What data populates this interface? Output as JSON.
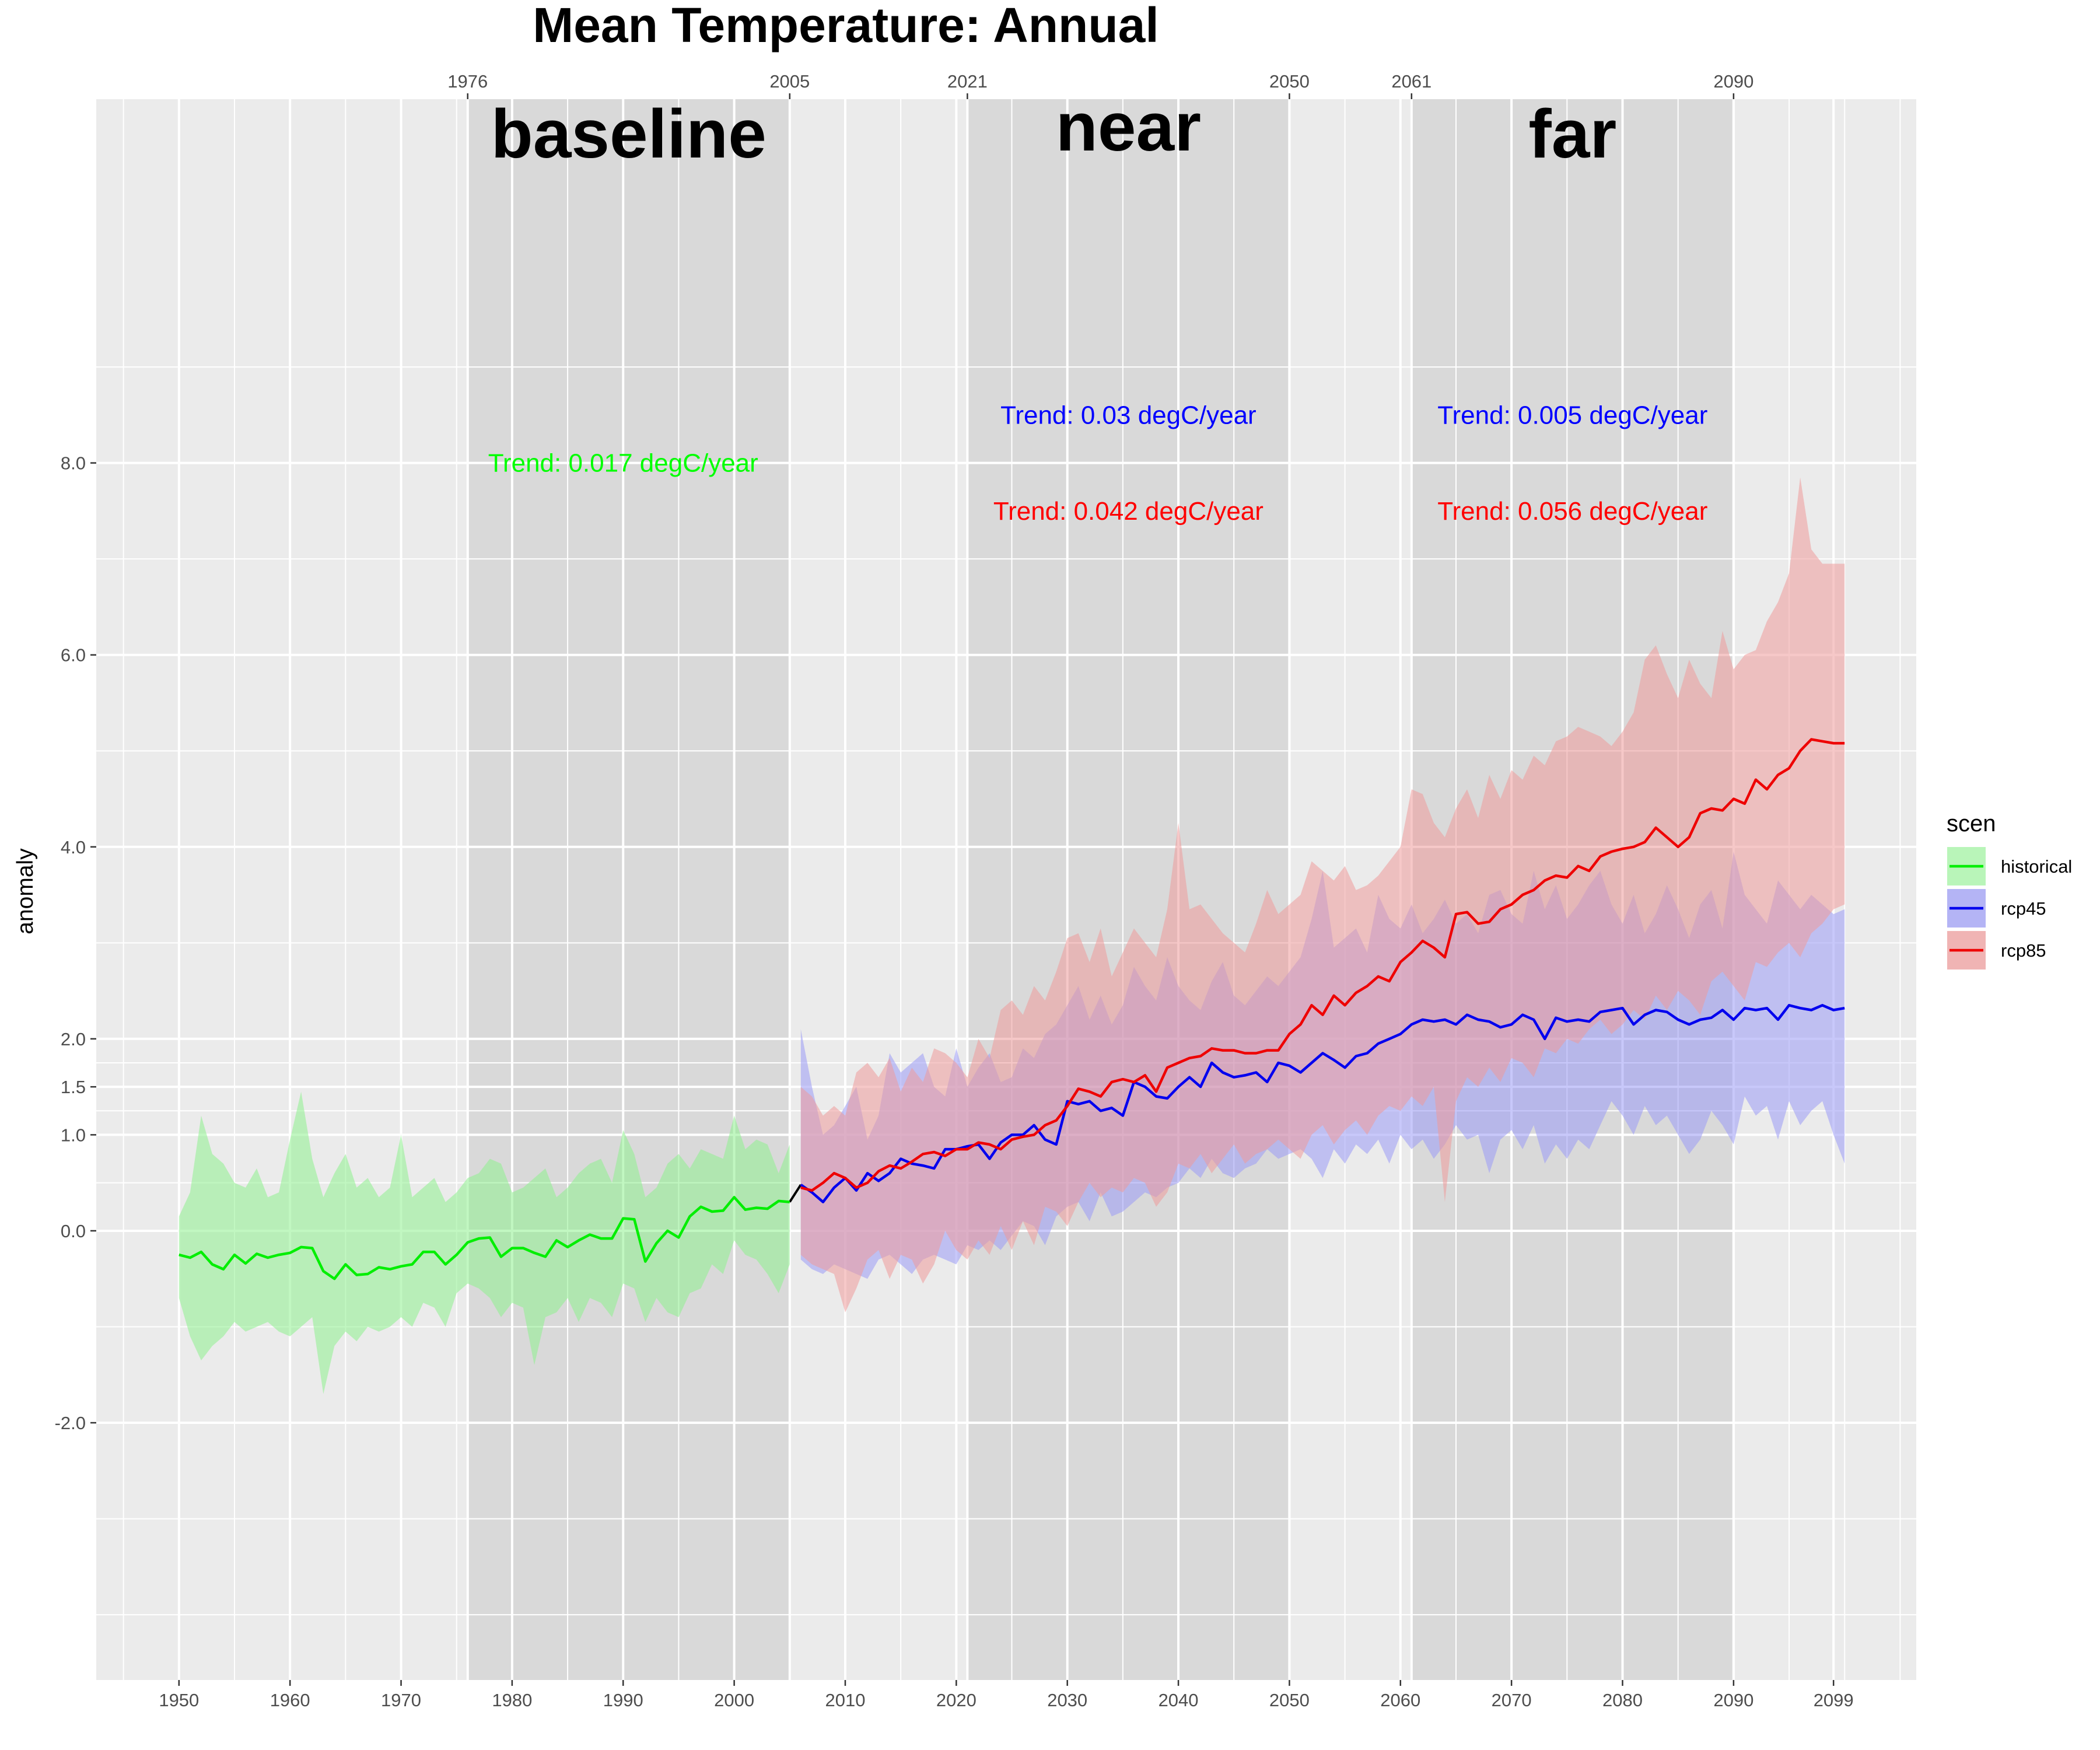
{
  "chart_data": {
    "type": "line",
    "title": "Mean Temperature: Annual",
    "xlabel": "",
    "ylabel": "anomaly",
    "xlim": [
      1942.55,
      2106.45
    ],
    "ylim": [
      -4.68,
      11.79
    ],
    "x_ticks_bottom": [
      1950,
      1960,
      1970,
      1980,
      1990,
      2000,
      2010,
      2020,
      2030,
      2040,
      2050,
      2060,
      2070,
      2080,
      2090,
      2099
    ],
    "y_ticks": [
      {
        "value": -2.0,
        "label": "-2.0"
      },
      {
        "value": 0.0,
        "label": "0.0"
      },
      {
        "value": 1.0,
        "label": "1.0"
      },
      {
        "value": 1.5,
        "label": "1.5"
      },
      {
        "value": 2.0,
        "label": "2.0"
      },
      {
        "value": 4.0,
        "label": "4.0"
      },
      {
        "value": 6.0,
        "label": "6.0"
      },
      {
        "value": 8.0,
        "label": "8.0"
      }
    ],
    "periods": [
      {
        "name": "baseline",
        "start": 1976,
        "end": 2005,
        "start_label": "1976",
        "end_label": "2005"
      },
      {
        "name": "near",
        "start": 2021,
        "end": 2050,
        "start_label": "2021",
        "end_label": "2050"
      },
      {
        "name": "far",
        "start": 2061,
        "end": 2090,
        "start_label": "2061",
        "end_label": "2090"
      }
    ],
    "annotations": [
      {
        "text": "Trend: 0.017 degC/year",
        "x": 1990,
        "y": 8.0,
        "color": "#00ff00"
      },
      {
        "text": "Trend: 0.03 degC/year",
        "x": 2035.5,
        "y": 8.5,
        "color": "#0000ff"
      },
      {
        "text": "Trend: 0.042 degC/year",
        "x": 2035.5,
        "y": 7.5,
        "color": "#ff0000"
      },
      {
        "text": "Trend: 0.005 degC/year",
        "x": 2075.5,
        "y": 8.5,
        "color": "#0000ff"
      },
      {
        "text": "Trend: 0.056 degC/year",
        "x": 2075.5,
        "y": 7.5,
        "color": "#ff0000"
      }
    ],
    "legend": {
      "title": "scen",
      "position": "right",
      "entries": [
        {
          "label": "historical",
          "line": "#00ee00",
          "fill": "#b9f5b9"
        },
        {
          "label": "rcp45",
          "line": "#0000ee",
          "fill": "#b4b4f5"
        },
        {
          "label": "rcp85",
          "line": "#ee0000",
          "fill": "#f0b4b4"
        }
      ]
    },
    "series": [
      {
        "name": "historical",
        "x_start": 1950,
        "line_color": "#00ee00",
        "fill_color": "#8ef08e",
        "fill_opacity": 0.55,
        "values": [
          -0.25,
          -0.28,
          -0.22,
          -0.35,
          -0.4,
          -0.25,
          -0.34,
          -0.24,
          -0.28,
          -0.25,
          -0.23,
          -0.17,
          -0.18,
          -0.42,
          -0.5,
          -0.35,
          -0.46,
          -0.45,
          -0.38,
          -0.4,
          -0.37,
          -0.35,
          -0.22,
          -0.22,
          -0.35,
          -0.25,
          -0.12,
          -0.08,
          -0.07,
          -0.27,
          -0.18,
          -0.18,
          -0.23,
          -0.27,
          -0.1,
          -0.17,
          -0.1,
          -0.04,
          -0.08,
          -0.08,
          0.13,
          0.12,
          -0.32,
          -0.13,
          0.0,
          -0.07,
          0.15,
          0.25,
          0.2,
          0.21,
          0.35,
          0.22,
          0.24,
          0.23,
          0.31,
          0.3
        ],
        "lower": [
          -0.7,
          -1.1,
          -1.35,
          -1.2,
          -1.1,
          -0.95,
          -1.05,
          -1.0,
          -0.95,
          -1.05,
          -1.1,
          -1.0,
          -0.9,
          -1.7,
          -1.2,
          -1.05,
          -1.15,
          -1.0,
          -1.05,
          -1.0,
          -0.9,
          -1.0,
          -0.75,
          -0.8,
          -1.0,
          -0.65,
          -0.55,
          -0.6,
          -0.7,
          -0.9,
          -0.75,
          -0.8,
          -1.4,
          -0.9,
          -0.85,
          -0.7,
          -0.95,
          -0.7,
          -0.75,
          -0.9,
          -0.55,
          -0.6,
          -0.95,
          -0.7,
          -0.85,
          -0.9,
          -0.65,
          -0.6,
          -0.35,
          -0.45,
          -0.1,
          -0.25,
          -0.3,
          -0.45,
          -0.65,
          -0.35
        ],
        "upper": [
          0.15,
          0.4,
          1.2,
          0.8,
          0.7,
          0.5,
          0.45,
          0.65,
          0.35,
          0.4,
          0.95,
          1.45,
          0.75,
          0.35,
          0.6,
          0.8,
          0.45,
          0.55,
          0.35,
          0.45,
          1.0,
          0.35,
          0.45,
          0.55,
          0.3,
          0.4,
          0.55,
          0.6,
          0.75,
          0.7,
          0.4,
          0.45,
          0.55,
          0.65,
          0.35,
          0.45,
          0.6,
          0.7,
          0.75,
          0.5,
          1.05,
          0.8,
          0.35,
          0.45,
          0.7,
          0.8,
          0.65,
          0.85,
          0.8,
          0.75,
          1.2,
          0.85,
          0.95,
          0.9,
          0.6,
          0.9
        ]
      },
      {
        "name": "rcp45",
        "x_start": 2006,
        "line_color": "#0000ee",
        "fill_color": "#9a9af5",
        "fill_opacity": 0.55,
        "values": [
          0.48,
          0.4,
          0.3,
          0.45,
          0.55,
          0.42,
          0.6,
          0.52,
          0.6,
          0.75,
          0.7,
          0.68,
          0.65,
          0.85,
          0.85,
          0.88,
          0.9,
          0.75,
          0.92,
          1.0,
          1.0,
          1.1,
          0.95,
          0.9,
          1.35,
          1.32,
          1.35,
          1.25,
          1.28,
          1.2,
          1.55,
          1.5,
          1.4,
          1.38,
          1.5,
          1.6,
          1.5,
          1.75,
          1.65,
          1.6,
          1.62,
          1.65,
          1.55,
          1.75,
          1.72,
          1.65,
          1.75,
          1.85,
          1.78,
          1.7,
          1.82,
          1.85,
          1.95,
          2.0,
          2.05,
          2.15,
          2.2,
          2.18,
          2.2,
          2.15,
          2.25,
          2.2,
          2.18,
          2.12,
          2.15,
          2.25,
          2.2,
          2.0,
          2.22,
          2.18,
          2.2,
          2.18,
          2.28,
          2.3,
          2.32,
          2.15,
          2.25,
          2.3,
          2.28,
          2.2,
          2.15,
          2.2,
          2.22,
          2.3,
          2.2,
          2.32,
          2.3,
          2.32,
          2.2,
          2.35,
          2.32,
          2.3,
          2.35,
          2.3,
          2.32
        ],
        "lower": [
          -0.3,
          -0.4,
          -0.45,
          -0.35,
          -0.4,
          -0.45,
          -0.5,
          -0.3,
          -0.25,
          -0.35,
          -0.45,
          -0.3,
          -0.25,
          -0.3,
          -0.35,
          -0.15,
          -0.2,
          -0.1,
          -0.2,
          -0.05,
          0.1,
          0.05,
          -0.15,
          0.15,
          0.25,
          0.3,
          0.1,
          0.4,
          0.15,
          0.2,
          0.3,
          0.4,
          0.35,
          0.45,
          0.5,
          0.65,
          0.55,
          0.75,
          0.6,
          0.55,
          0.65,
          0.7,
          0.85,
          0.75,
          0.8,
          0.85,
          0.75,
          0.55,
          0.85,
          0.7,
          0.9,
          0.8,
          0.95,
          0.7,
          1.0,
          0.85,
          0.95,
          0.75,
          0.9,
          1.1,
          0.95,
          1.0,
          0.6,
          0.95,
          1.05,
          0.85,
          1.1,
          0.7,
          0.9,
          0.75,
          0.95,
          0.85,
          1.1,
          1.35,
          1.2,
          1.0,
          1.3,
          1.1,
          1.2,
          1.0,
          0.8,
          0.95,
          1.25,
          1.1,
          0.9,
          1.4,
          1.2,
          1.3,
          0.95,
          1.35,
          1.1,
          1.25,
          1.35,
          1.0,
          0.7
        ],
        "upper": [
          2.1,
          1.5,
          1.0,
          1.1,
          1.3,
          1.5,
          0.95,
          1.2,
          1.85,
          1.65,
          1.75,
          1.85,
          1.5,
          1.4,
          1.9,
          1.5,
          1.7,
          1.85,
          1.55,
          1.6,
          1.9,
          1.8,
          2.05,
          2.15,
          2.35,
          2.55,
          2.2,
          2.45,
          2.15,
          2.35,
          2.75,
          2.55,
          2.4,
          2.85,
          2.55,
          2.4,
          2.3,
          2.6,
          2.8,
          2.45,
          2.35,
          2.5,
          2.65,
          2.55,
          2.7,
          2.85,
          3.25,
          3.75,
          2.95,
          3.05,
          3.15,
          2.9,
          3.5,
          3.25,
          3.15,
          3.4,
          3.1,
          3.25,
          3.45,
          3.2,
          3.3,
          3.1,
          3.5,
          3.55,
          3.3,
          3.2,
          3.75,
          3.35,
          3.6,
          3.25,
          3.4,
          3.6,
          3.75,
          3.4,
          3.2,
          3.5,
          3.1,
          3.3,
          3.6,
          3.35,
          3.05,
          3.4,
          3.55,
          3.15,
          3.95,
          3.5,
          3.35,
          3.2,
          3.65,
          3.5,
          3.35,
          3.5,
          3.4,
          3.3,
          3.35
        ]
      },
      {
        "name": "rcp85",
        "x_start": 2006,
        "line_color": "#ee0000",
        "fill_color": "#ee9a9a",
        "fill_opacity": 0.55,
        "values": [
          0.45,
          0.42,
          0.5,
          0.6,
          0.55,
          0.45,
          0.5,
          0.62,
          0.68,
          0.65,
          0.72,
          0.8,
          0.82,
          0.78,
          0.85,
          0.85,
          0.92,
          0.9,
          0.85,
          0.95,
          0.98,
          1.0,
          1.1,
          1.15,
          1.3,
          1.48,
          1.45,
          1.4,
          1.55,
          1.58,
          1.55,
          1.62,
          1.45,
          1.7,
          1.75,
          1.8,
          1.82,
          1.9,
          1.88,
          1.88,
          1.85,
          1.85,
          1.88,
          1.88,
          2.05,
          2.15,
          2.35,
          2.25,
          2.45,
          2.35,
          2.48,
          2.55,
          2.65,
          2.6,
          2.8,
          2.9,
          3.02,
          2.95,
          2.85,
          3.3,
          3.32,
          3.2,
          3.22,
          3.35,
          3.4,
          3.5,
          3.55,
          3.65,
          3.7,
          3.68,
          3.8,
          3.75,
          3.9,
          3.95,
          3.98,
          4.0,
          4.05,
          4.2,
          4.1,
          4.0,
          4.1,
          4.35,
          4.4,
          4.38,
          4.5,
          4.45,
          4.7,
          4.6,
          4.75,
          4.82,
          5.0,
          5.12,
          5.1,
          5.08,
          5.08
        ],
        "lower": [
          -0.25,
          -0.35,
          -0.4,
          -0.45,
          -0.85,
          -0.6,
          -0.3,
          -0.2,
          -0.5,
          -0.25,
          -0.3,
          -0.55,
          -0.35,
          0.0,
          -0.2,
          -0.3,
          -0.1,
          -0.25,
          0.05,
          -0.2,
          0.1,
          -0.15,
          0.25,
          0.2,
          0.05,
          0.3,
          0.5,
          0.35,
          0.45,
          0.4,
          0.55,
          0.5,
          0.25,
          0.4,
          0.7,
          0.65,
          0.8,
          0.6,
          0.75,
          0.9,
          0.7,
          0.8,
          0.85,
          0.95,
          0.85,
          0.75,
          1.0,
          1.1,
          0.9,
          1.05,
          1.15,
          1.0,
          1.2,
          1.3,
          1.25,
          1.4,
          1.3,
          1.5,
          0.3,
          1.35,
          1.6,
          1.5,
          1.7,
          1.55,
          1.8,
          1.75,
          1.6,
          1.9,
          1.85,
          2.0,
          1.95,
          2.1,
          2.2,
          2.05,
          2.15,
          2.3,
          2.2,
          2.45,
          2.3,
          2.5,
          2.4,
          2.25,
          2.6,
          2.7,
          2.55,
          2.4,
          2.8,
          2.75,
          2.9,
          3.0,
          2.85,
          3.1,
          3.2,
          3.35,
          3.4
        ],
        "upper": [
          1.5,
          1.4,
          1.2,
          1.3,
          1.2,
          1.65,
          1.75,
          1.6,
          1.8,
          1.45,
          1.7,
          1.55,
          1.9,
          1.85,
          1.75,
          1.6,
          2.0,
          1.8,
          2.3,
          2.4,
          2.25,
          2.55,
          2.4,
          2.7,
          3.05,
          3.1,
          2.8,
          3.15,
          2.65,
          2.9,
          3.15,
          3.0,
          2.85,
          3.35,
          4.25,
          3.35,
          3.4,
          3.25,
          3.1,
          3.0,
          2.9,
          3.2,
          3.55,
          3.3,
          3.4,
          3.5,
          3.85,
          3.75,
          3.65,
          3.8,
          3.55,
          3.6,
          3.7,
          3.85,
          4.0,
          4.6,
          4.55,
          4.25,
          4.1,
          4.4,
          4.6,
          4.3,
          4.75,
          4.5,
          4.8,
          4.7,
          4.95,
          4.85,
          5.1,
          5.15,
          5.25,
          5.2,
          5.15,
          5.05,
          5.2,
          5.4,
          5.95,
          6.1,
          5.8,
          5.55,
          5.95,
          5.7,
          5.55,
          6.25,
          5.85,
          6.0,
          6.05,
          6.35,
          6.55,
          6.85,
          7.85,
          7.1,
          6.95,
          6.95,
          6.95
        ]
      }
    ]
  }
}
